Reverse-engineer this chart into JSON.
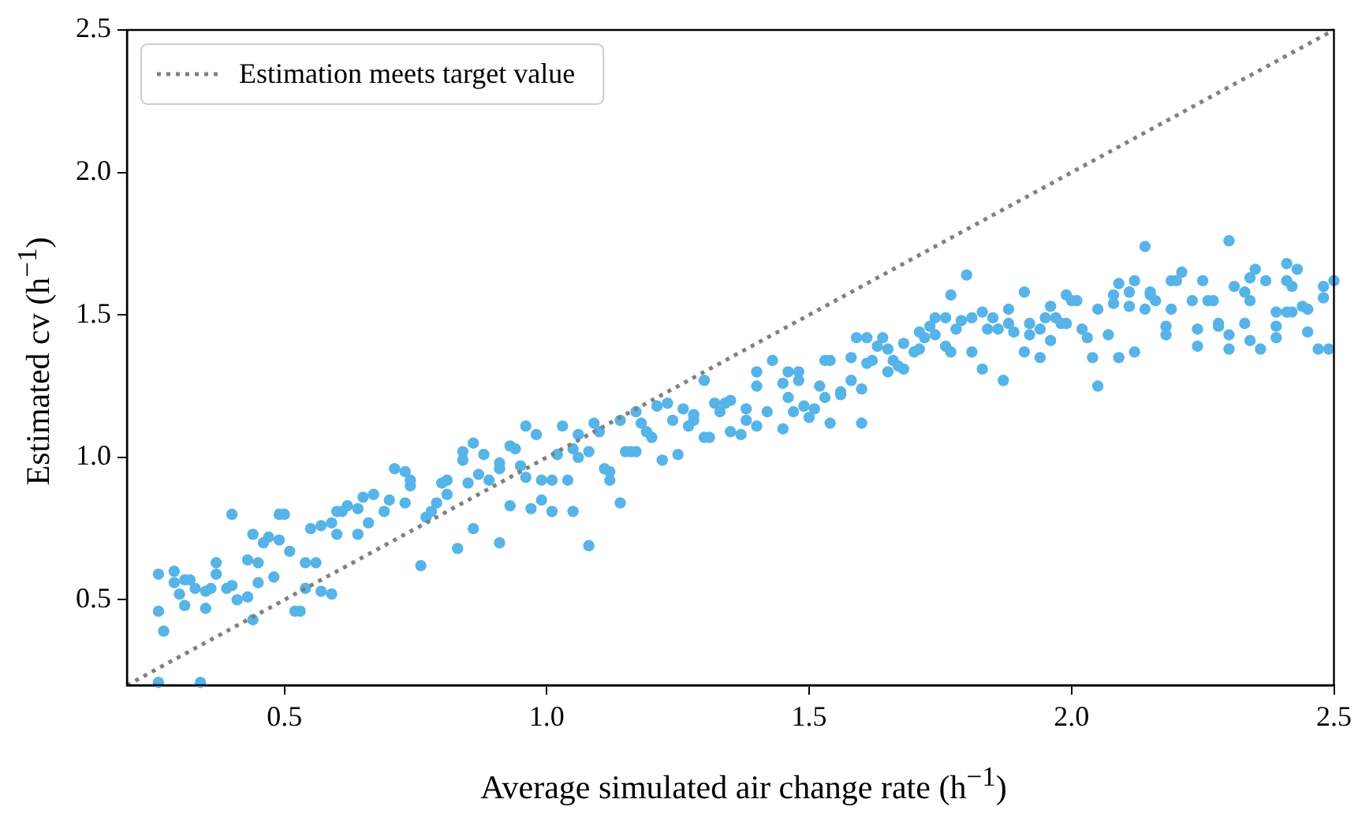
{
  "chart_data": {
    "type": "scatter",
    "xlabel": "Average simulated air change rate (h$^{−1}$)",
    "ylabel": "Estimated cv (h$^{−1}$)",
    "xlim": [
      0.2,
      2.5
    ],
    "ylim": [
      0.2,
      2.5
    ],
    "xticks": [
      0.5,
      {
        "value": 1,
        "label": "1.0"
      },
      1.5,
      {
        "value": 2,
        "label": "2.0"
      },
      2.5
    ],
    "yticks": [
      0.5,
      {
        "value": 1,
        "label": "1.0"
      },
      1.5,
      {
        "value": 2,
        "label": "2.0"
      },
      2.5
    ],
    "legend": "top left",
    "series": [
      {
        "type": "scatter",
        "color": "#56b4e9",
        "x": [
          0.26,
          0.26,
          0.27,
          0.29,
          0.29,
          0.3,
          0.31,
          0.31,
          0.32,
          0.33,
          0.35,
          0.35,
          0.36,
          0.37,
          0.37,
          0.39,
          0.4,
          0.4,
          0.41,
          0.43,
          0.43,
          0.44,
          0.44,
          0.45,
          0.45,
          0.46,
          0.47,
          0.48,
          0.49,
          0.49,
          0.5,
          0.51,
          0.52,
          0.53,
          0.54,
          0.54,
          0.55,
          0.56,
          0.57,
          0.57,
          0.59,
          0.59,
          0.6,
          0.6,
          0.61,
          0.62,
          0.64,
          0.64,
          0.65,
          0.66,
          0.67,
          0.69,
          0.7,
          0.71,
          0.73,
          0.74,
          0.74,
          0.73,
          0.76,
          0.77,
          0.78,
          0.79,
          0.8,
          0.81,
          0.26,
          0.34,
          0.81,
          0.83,
          0.84,
          0.84,
          0.85,
          0.86,
          0.86,
          0.87,
          0.88,
          0.89,
          0.91,
          0.91,
          0.91,
          0.93,
          0.93,
          0.94,
          0.95,
          0.96,
          0.96,
          0.97,
          0.98,
          0.99,
          0.99,
          1.01,
          1.01,
          1.02,
          1.03,
          1.04,
          1.05,
          1.05,
          1.06,
          1.06,
          1.08,
          1.08,
          1.09,
          1.1,
          1.11,
          1.12,
          1.12,
          1.14,
          1.14,
          1.15,
          1.16,
          1.17,
          1.17,
          1.18,
          1.19,
          1.2,
          1.21,
          1.22,
          1.23,
          1.24,
          1.25,
          1.26,
          1.27,
          1.28,
          1.28,
          1.3,
          1.3,
          1.31,
          1.32,
          1.33,
          1.34,
          1.35,
          1.35,
          1.37,
          1.38,
          1.38,
          1.4,
          1.4,
          1.4,
          1.42,
          1.43,
          1.45,
          1.45,
          1.46,
          1.46,
          1.47,
          1.48,
          1.48,
          1.49,
          1.5,
          1.51,
          1.52,
          1.53,
          1.53,
          1.54,
          1.54,
          1.56,
          1.56,
          1.58,
          1.58,
          1.59,
          1.6,
          1.6,
          1.61,
          1.61,
          1.62,
          1.63,
          1.64,
          1.65,
          1.65,
          1.66,
          1.67,
          1.68,
          1.68,
          1.7,
          1.71,
          1.71,
          1.72,
          1.73,
          1.74,
          1.74,
          1.76,
          1.77,
          1.76,
          1.77,
          1.78,
          1.79,
          1.81,
          1.8,
          1.81,
          1.83,
          1.83,
          1.84,
          1.85,
          1.86,
          1.87,
          1.88,
          1.88,
          1.89,
          1.91,
          1.91,
          1.92,
          1.92,
          1.94,
          1.94,
          1.95,
          1.96,
          1.96,
          1.97,
          1.98,
          1.99,
          1.99,
          2.0,
          2.01,
          2.02,
          2.03,
          2.04,
          2.05,
          2.05,
          2.07,
          2.08,
          2.08,
          2.09,
          2.09,
          2.11,
          2.11,
          2.12,
          2.12,
          2.14,
          2.14,
          2.15,
          2.15,
          2.16,
          2.18,
          2.18,
          2.19,
          2.19,
          2.2,
          2.21,
          2.23,
          2.24,
          2.24,
          2.25,
          2.26,
          2.27,
          2.28,
          2.28,
          2.3,
          2.3,
          2.3,
          2.31,
          2.33,
          2.33,
          2.34,
          2.34,
          2.34,
          2.35,
          2.37,
          2.36,
          2.39,
          2.39,
          2.39,
          2.41,
          2.41,
          2.41,
          2.42,
          2.42,
          2.43,
          2.44,
          2.45,
          2.45,
          2.47,
          2.48,
          2.48,
          2.49,
          2.5
        ],
        "values": [
          0.59,
          0.46,
          0.39,
          0.6,
          0.56,
          0.52,
          0.48,
          0.57,
          0.57,
          0.54,
          0.53,
          0.47,
          0.54,
          0.63,
          0.59,
          0.54,
          0.8,
          0.55,
          0.5,
          0.51,
          0.64,
          0.73,
          0.43,
          0.56,
          0.63,
          0.7,
          0.72,
          0.58,
          0.71,
          0.8,
          0.8,
          0.67,
          0.46,
          0.46,
          0.63,
          0.54,
          0.75,
          0.63,
          0.53,
          0.76,
          0.77,
          0.52,
          0.73,
          0.81,
          0.81,
          0.83,
          0.82,
          0.73,
          0.86,
          0.77,
          0.87,
          0.81,
          0.85,
          0.96,
          0.95,
          0.92,
          0.9,
          0.84,
          0.62,
          0.79,
          0.81,
          0.84,
          0.91,
          0.87,
          0.21,
          0.21,
          0.92,
          0.68,
          1.02,
          0.99,
          0.91,
          0.75,
          1.05,
          0.94,
          1.01,
          0.92,
          0.7,
          0.98,
          0.96,
          1.04,
          0.83,
          1.03,
          0.97,
          0.93,
          1.11,
          0.82,
          1.08,
          0.92,
          0.85,
          0.92,
          0.81,
          1.01,
          1.11,
          0.92,
          0.81,
          1.03,
          1.0,
          1.08,
          1.02,
          0.69,
          1.12,
          1.09,
          0.96,
          0.95,
          0.92,
          0.84,
          1.13,
          1.02,
          1.02,
          1.16,
          1.02,
          1.12,
          1.09,
          1.07,
          1.18,
          0.99,
          1.19,
          1.13,
          1.01,
          1.17,
          1.11,
          1.15,
          1.13,
          1.07,
          1.27,
          1.07,
          1.19,
          1.16,
          1.19,
          1.2,
          1.09,
          1.08,
          1.13,
          1.17,
          1.11,
          1.3,
          1.25,
          1.16,
          1.34,
          1.1,
          1.26,
          1.3,
          1.21,
          1.16,
          1.3,
          1.27,
          1.18,
          1.14,
          1.17,
          1.25,
          1.21,
          1.34,
          1.34,
          1.12,
          1.22,
          1.23,
          1.27,
          1.35,
          1.42,
          1.12,
          1.24,
          1.42,
          1.33,
          1.34,
          1.39,
          1.42,
          1.3,
          1.38,
          1.34,
          1.32,
          1.4,
          1.31,
          1.37,
          1.44,
          1.38,
          1.42,
          1.46,
          1.49,
          1.43,
          1.49,
          1.57,
          1.39,
          1.37,
          1.45,
          1.48,
          1.49,
          1.64,
          1.37,
          1.31,
          1.51,
          1.45,
          1.49,
          1.45,
          1.27,
          1.52,
          1.47,
          1.44,
          1.58,
          1.37,
          1.43,
          1.47,
          1.45,
          1.35,
          1.49,
          1.41,
          1.53,
          1.49,
          1.47,
          1.57,
          1.47,
          1.55,
          1.55,
          1.45,
          1.42,
          1.35,
          1.25,
          1.52,
          1.43,
          1.54,
          1.57,
          1.61,
          1.35,
          1.53,
          1.58,
          1.62,
          1.37,
          1.52,
          1.74,
          1.58,
          1.57,
          1.55,
          1.46,
          1.43,
          1.52,
          1.62,
          1.62,
          1.65,
          1.55,
          1.39,
          1.45,
          1.62,
          1.55,
          1.55,
          1.47,
          1.46,
          1.76,
          1.43,
          1.38,
          1.6,
          1.58,
          1.47,
          1.63,
          1.55,
          1.41,
          1.66,
          1.62,
          1.38,
          1.51,
          1.46,
          1.42,
          1.62,
          1.51,
          1.68,
          1.6,
          1.51,
          1.66,
          1.53,
          1.52,
          1.44,
          1.38,
          1.6,
          1.56,
          1.38,
          1.62
        ]
      },
      {
        "type": "line",
        "name": "Estimation meets target value",
        "color": "#808080",
        "line_style": "dotted",
        "x": [
          0.2,
          2.5
        ],
        "values": [
          0.2,
          2.5
        ]
      }
    ]
  }
}
